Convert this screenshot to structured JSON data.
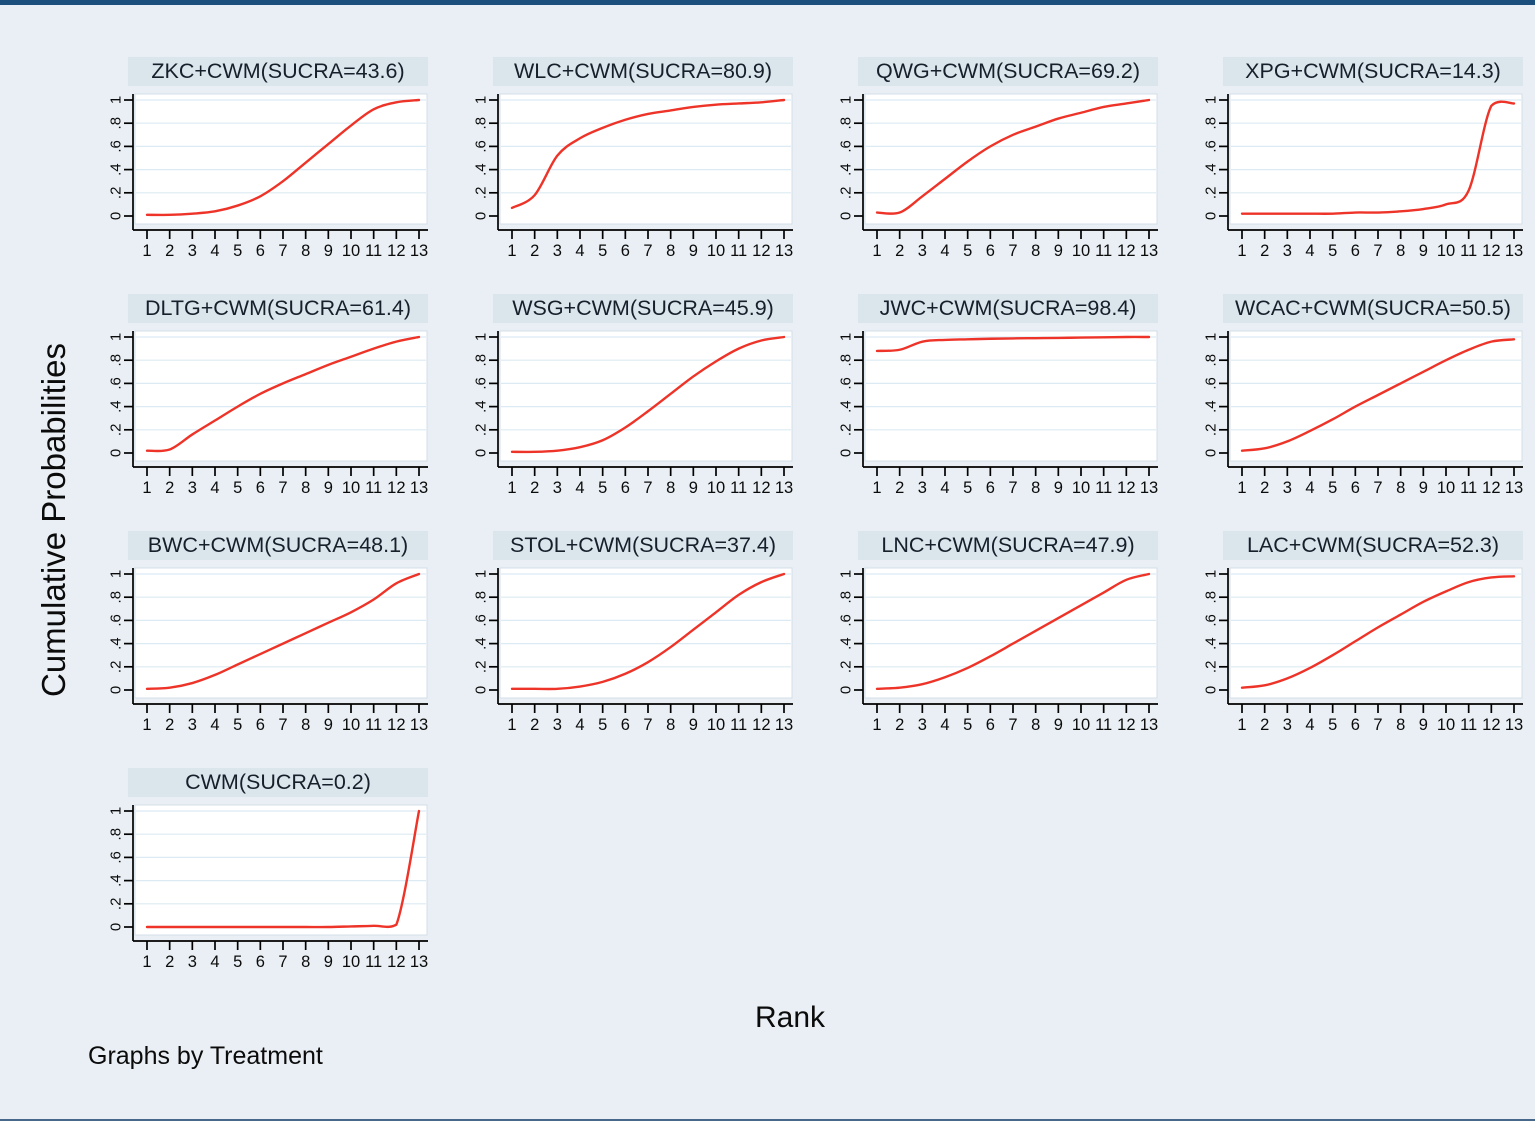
{
  "figure": {
    "y_axis_title": "Cumulative Probabilities",
    "x_axis_title": "Rank",
    "footnote": "Graphs by Treatment"
  },
  "colors": {
    "background": "#e9eff4",
    "panel_title_bg": "#dbe5ec",
    "plot_bg": "#ffffff",
    "plot_border": "#d3dfe8",
    "gridline": "#dcebf3",
    "axis": "#000000",
    "curve": "#ee3328",
    "top_border": "#1d4f7c"
  },
  "chart_data": {
    "type": "line",
    "layout": "small-multiples 4 columns, 13 panels",
    "xlabel": "Rank",
    "ylabel": "Cumulative Probabilities",
    "x": [
      1,
      2,
      3,
      4,
      5,
      6,
      7,
      8,
      9,
      10,
      11,
      12,
      13
    ],
    "x_ticklabels": [
      "1",
      "2",
      "3",
      "4",
      "5",
      "6",
      "7",
      "8",
      "9",
      "10",
      "11",
      "12",
      "13"
    ],
    "y_ticklabels": [
      "0",
      ".2",
      ".4",
      ".6",
      ".8",
      "1"
    ],
    "y_tickvalues": [
      0,
      0.2,
      0.4,
      0.6,
      0.8,
      1
    ],
    "ylim": [
      0,
      1
    ],
    "grid": "horizontal",
    "panels": [
      {
        "title": "ZKC+CWM(SUCRA=43.6)",
        "treatment": "ZKC+CWM",
        "sucra": 43.6,
        "values": [
          0.01,
          0.01,
          0.02,
          0.04,
          0.09,
          0.17,
          0.3,
          0.46,
          0.62,
          0.78,
          0.92,
          0.98,
          1.0
        ]
      },
      {
        "title": "WLC+CWM(SUCRA=80.9)",
        "treatment": "WLC+CWM",
        "sucra": 80.9,
        "values": [
          0.07,
          0.18,
          0.52,
          0.67,
          0.76,
          0.83,
          0.88,
          0.91,
          0.94,
          0.96,
          0.97,
          0.98,
          1.0
        ]
      },
      {
        "title": "QWG+CWM(SUCRA=69.2)",
        "treatment": "QWG+CWM",
        "sucra": 69.2,
        "values": [
          0.03,
          0.03,
          0.17,
          0.32,
          0.47,
          0.6,
          0.7,
          0.77,
          0.84,
          0.89,
          0.94,
          0.97,
          1.0
        ]
      },
      {
        "title": "XPG+CWM(SUCRA=14.3)",
        "treatment": "XPG+CWM",
        "sucra": 14.3,
        "values": [
          0.02,
          0.02,
          0.02,
          0.02,
          0.02,
          0.03,
          0.03,
          0.04,
          0.06,
          0.1,
          0.22,
          0.95,
          0.97
        ]
      },
      {
        "title": "DLTG+CWM(SUCRA=61.4)",
        "treatment": "DLTG+CWM",
        "sucra": 61.4,
        "values": [
          0.02,
          0.03,
          0.16,
          0.28,
          0.4,
          0.51,
          0.6,
          0.68,
          0.76,
          0.83,
          0.9,
          0.96,
          1.0
        ]
      },
      {
        "title": "WSG+CWM(SUCRA=45.9)",
        "treatment": "WSG+CWM",
        "sucra": 45.9,
        "values": [
          0.01,
          0.01,
          0.02,
          0.05,
          0.11,
          0.22,
          0.36,
          0.51,
          0.66,
          0.79,
          0.9,
          0.97,
          1.0
        ]
      },
      {
        "title": "JWC+CWM(SUCRA=98.4)",
        "treatment": "JWC+CWM",
        "sucra": 98.4,
        "values": [
          0.88,
          0.89,
          0.96,
          0.975,
          0.98,
          0.985,
          0.988,
          0.99,
          0.992,
          0.995,
          0.997,
          1.0,
          1.0
        ]
      },
      {
        "title": "WCAC+CWM(SUCRA=50.5)",
        "treatment": "WCAC+CWM",
        "sucra": 50.5,
        "values": [
          0.02,
          0.04,
          0.1,
          0.19,
          0.29,
          0.4,
          0.5,
          0.6,
          0.7,
          0.8,
          0.89,
          0.96,
          0.98
        ]
      },
      {
        "title": "BWC+CWM(SUCRA=48.1)",
        "treatment": "BWC+CWM",
        "sucra": 48.1,
        "values": [
          0.01,
          0.02,
          0.06,
          0.13,
          0.22,
          0.31,
          0.4,
          0.49,
          0.58,
          0.67,
          0.78,
          0.92,
          1.0
        ]
      },
      {
        "title": "STOL+CWM(SUCRA=37.4)",
        "treatment": "STOL+CWM",
        "sucra": 37.4,
        "values": [
          0.01,
          0.01,
          0.01,
          0.03,
          0.07,
          0.14,
          0.24,
          0.37,
          0.52,
          0.67,
          0.82,
          0.93,
          1.0
        ]
      },
      {
        "title": "LNC+CWM(SUCRA=47.9)",
        "treatment": "LNC+CWM",
        "sucra": 47.9,
        "values": [
          0.01,
          0.02,
          0.05,
          0.11,
          0.19,
          0.29,
          0.4,
          0.51,
          0.62,
          0.73,
          0.84,
          0.95,
          1.0
        ]
      },
      {
        "title": "LAC+CWM(SUCRA=52.3)",
        "treatment": "LAC+CWM",
        "sucra": 52.3,
        "values": [
          0.02,
          0.04,
          0.1,
          0.19,
          0.3,
          0.42,
          0.54,
          0.65,
          0.76,
          0.85,
          0.93,
          0.97,
          0.98
        ]
      },
      {
        "title": "CWM(SUCRA=0.2)",
        "treatment": "CWM",
        "sucra": 0.2,
        "values": [
          0.0,
          0.0,
          0.0,
          0.0,
          0.0,
          0.0,
          0.0,
          0.0,
          0.0,
          0.005,
          0.01,
          0.02,
          1.0
        ]
      }
    ]
  }
}
